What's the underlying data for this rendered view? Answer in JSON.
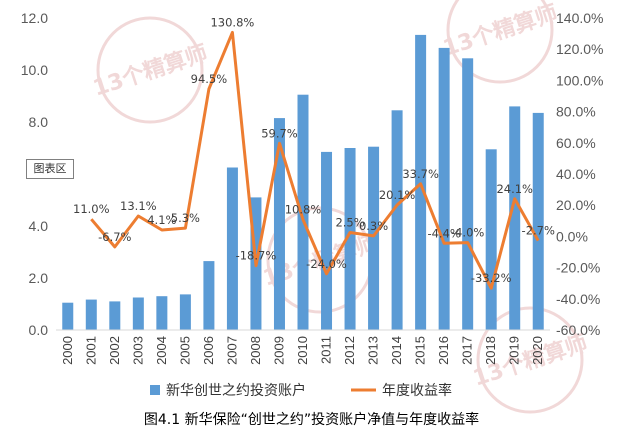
{
  "caption": "图4.1  新华保险“创世之约”投资账户净值与年度收益率",
  "tag": "图表区",
  "watermark": "13个精算师",
  "chart_data": {
    "type": "bar",
    "categories": [
      "2000",
      "2001",
      "2002",
      "2003",
      "2004",
      "2005",
      "2006",
      "2007",
      "2008",
      "2009",
      "2010",
      "2011",
      "2012",
      "2013",
      "2014",
      "2015",
      "2016",
      "2017",
      "2018",
      "2019",
      "2020"
    ],
    "series": [
      {
        "name": "新华创世之约投资账户",
        "type": "bar",
        "axis": "left",
        "color": "#5B9BD5",
        "values": [
          1.05,
          1.17,
          1.1,
          1.25,
          1.3,
          1.37,
          2.65,
          6.25,
          5.1,
          8.15,
          9.05,
          6.85,
          7.0,
          7.05,
          8.45,
          11.35,
          10.85,
          10.45,
          6.95,
          8.6,
          8.35
        ]
      },
      {
        "name": "年度收益率",
        "type": "line",
        "axis": "right",
        "color": "#ED7D31",
        "values": [
          null,
          11.0,
          -6.7,
          13.1,
          4.1,
          5.3,
          94.5,
          130.8,
          -18.7,
          59.7,
          10.8,
          -24.0,
          2.5,
          0.3,
          20.1,
          33.7,
          -4.4,
          -4.0,
          -33.2,
          24.1,
          -2.7
        ],
        "labels": [
          "",
          "11.0%",
          "-6.7%",
          "13.1%",
          "4.1%",
          "5.3%",
          "94.5%",
          "130.8%",
          "-18.7%",
          "59.7%",
          "10.8%",
          "-24.0%",
          "2.5%",
          "0.3%",
          "20.1%",
          "33.7%",
          "-4.4%",
          "-4.0%",
          "-33.2%",
          "24.1%",
          "-2.7%"
        ]
      }
    ],
    "y_left": {
      "min": 0,
      "max": 12,
      "ticks": [
        "0.0",
        "2.0",
        "4.0",
        "6.0",
        "8.0",
        "10.0",
        "12.0"
      ]
    },
    "y_right": {
      "min": -60,
      "max": 140,
      "ticks": [
        "-60.0%",
        "-40.0%",
        "-20.0%",
        "0.0%",
        "20.0%",
        "40.0%",
        "60.0%",
        "80.0%",
        "100.0%",
        "120.0%",
        "140.0%"
      ]
    },
    "legend_position": "bottom",
    "grid": false
  }
}
